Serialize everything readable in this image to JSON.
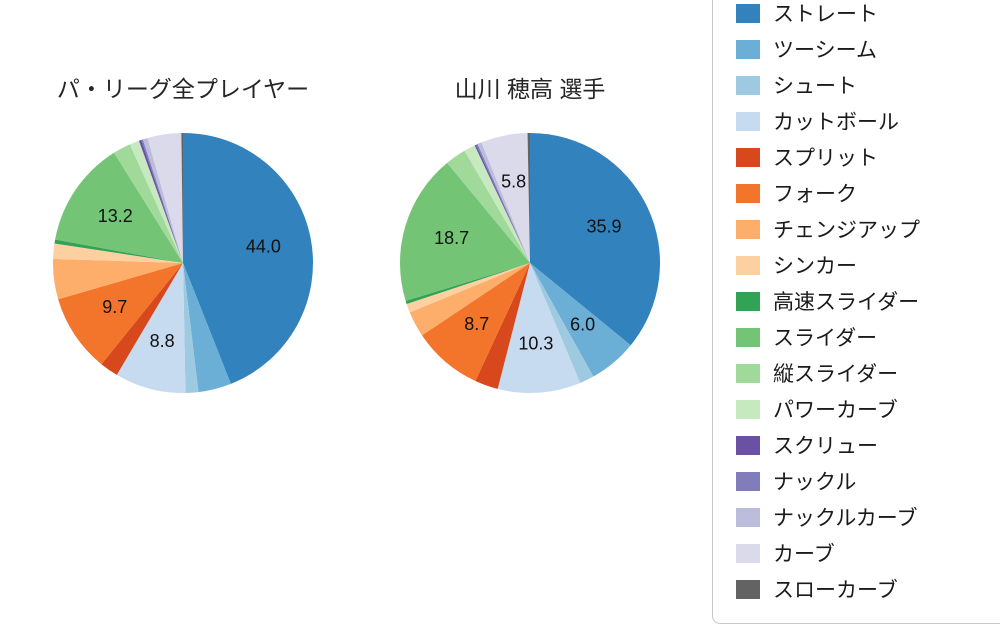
{
  "legend": {
    "items": [
      {
        "label": "ストレート",
        "color": "#3182bd"
      },
      {
        "label": "ツーシーム",
        "color": "#6baed6"
      },
      {
        "label": "シュート",
        "color": "#9ecae1"
      },
      {
        "label": "カットボール",
        "color": "#c6dbef"
      },
      {
        "label": "スプリット",
        "color": "#d7481d"
      },
      {
        "label": "フォーク",
        "color": "#f3752b"
      },
      {
        "label": "チェンジアップ",
        "color": "#fdae6b"
      },
      {
        "label": "シンカー",
        "color": "#fdd0a2"
      },
      {
        "label": "高速スライダー",
        "color": "#31a354"
      },
      {
        "label": "スライダー",
        "color": "#74c476"
      },
      {
        "label": "縦スライダー",
        "color": "#a1d99b"
      },
      {
        "label": "パワーカーブ",
        "color": "#c7e9c0"
      },
      {
        "label": "スクリュー",
        "color": "#6a51a3"
      },
      {
        "label": "ナックル",
        "color": "#807dba"
      },
      {
        "label": "ナックルカーブ",
        "color": "#bcbddc"
      },
      {
        "label": "カーブ",
        "color": "#dadaeb"
      },
      {
        "label": "スローカーブ",
        "color": "#636363"
      }
    ]
  },
  "chart_data": [
    {
      "type": "pie",
      "title": "パ・リーグ全プレイヤー",
      "start_angle_deg": 0,
      "direction": "clockwise",
      "label_min_pct": 5.5,
      "slices": [
        {
          "label": "ストレート",
          "value": 44.0
        },
        {
          "label": "ツーシーム",
          "value": 4.1
        },
        {
          "label": "シュート",
          "value": 1.6
        },
        {
          "label": "カットボール",
          "value": 8.8
        },
        {
          "label": "スプリット",
          "value": 2.3
        },
        {
          "label": "フォーク",
          "value": 9.7
        },
        {
          "label": "チェンジアップ",
          "value": 5.0
        },
        {
          "label": "シンカー",
          "value": 1.9
        },
        {
          "label": "高速スライダー",
          "value": 0.5
        },
        {
          "label": "スライダー",
          "value": 13.2
        },
        {
          "label": "縦スライダー",
          "value": 2.2
        },
        {
          "label": "パワーカーブ",
          "value": 1.2
        },
        {
          "label": "スクリュー",
          "value": 0.3
        },
        {
          "label": "ナックル",
          "value": 0.2
        },
        {
          "label": "ナックルカーブ",
          "value": 0.6
        },
        {
          "label": "カーブ",
          "value": 4.2
        },
        {
          "label": "スローカーブ",
          "value": 0.2
        }
      ]
    },
    {
      "type": "pie",
      "title": "山川 穂高  選手",
      "start_angle_deg": 0,
      "direction": "clockwise",
      "label_min_pct": 5.5,
      "slices": [
        {
          "label": "ストレート",
          "value": 35.9
        },
        {
          "label": "ツーシーム",
          "value": 6.0
        },
        {
          "label": "シュート",
          "value": 1.8
        },
        {
          "label": "カットボール",
          "value": 10.3
        },
        {
          "label": "スプリット",
          "value": 2.9
        },
        {
          "label": "フォーク",
          "value": 8.7
        },
        {
          "label": "チェンジアップ",
          "value": 3.2
        },
        {
          "label": "シンカー",
          "value": 1.1
        },
        {
          "label": "高速スライダー",
          "value": 0.4
        },
        {
          "label": "スライダー",
          "value": 18.7
        },
        {
          "label": "縦スライダー",
          "value": 2.6
        },
        {
          "label": "パワーカーブ",
          "value": 1.4
        },
        {
          "label": "スクリュー",
          "value": 0.2
        },
        {
          "label": "ナックル",
          "value": 0.2
        },
        {
          "label": "ナックルカーブ",
          "value": 0.5
        },
        {
          "label": "カーブ",
          "value": 5.8
        },
        {
          "label": "スローカーブ",
          "value": 0.3
        }
      ]
    }
  ]
}
